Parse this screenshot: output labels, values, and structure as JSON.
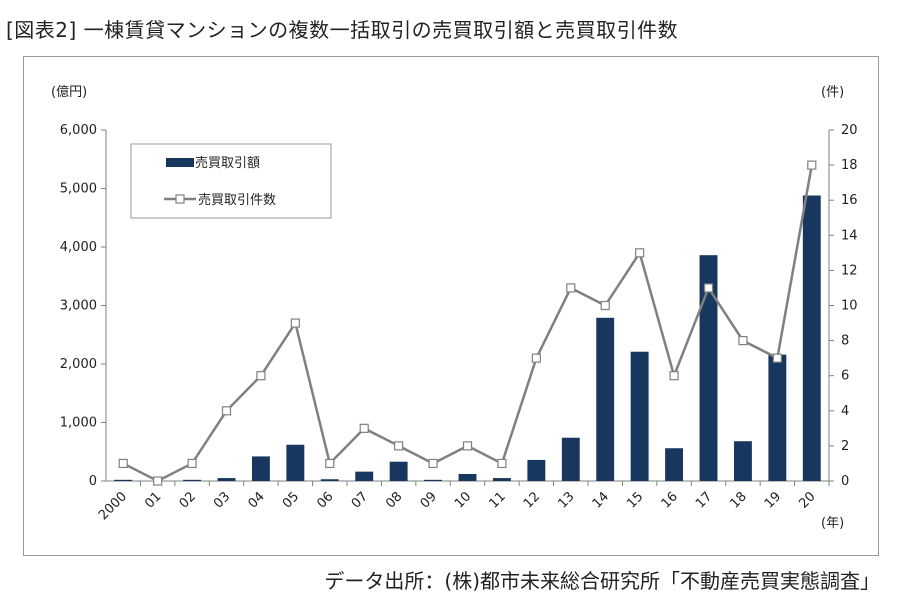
{
  "figure": {
    "title": "[図表2] 一棟賃貸マンションの複数一括取引の売買取引額と売買取引件数",
    "source": "データ出所：(株)都市未来総合研究所「不動産売買実態調査」"
  },
  "colors": {
    "bar": "#17375e",
    "line": "#808080",
    "marker_fill": "#ffffff",
    "axis": "#808080"
  },
  "chart_data": {
    "type": "bar",
    "categories": [
      "2000",
      "01",
      "02",
      "03",
      "04",
      "05",
      "06",
      "07",
      "08",
      "09",
      "10",
      "11",
      "12",
      "13",
      "14",
      "15",
      "16",
      "17",
      "18",
      "19",
      "20"
    ],
    "series": [
      {
        "name": "売買取引額",
        "type": "bar",
        "axis": "left",
        "values": [
          20,
          0,
          20,
          50,
          420,
          620,
          30,
          160,
          330,
          20,
          120,
          50,
          360,
          740,
          2790,
          2210,
          560,
          3860,
          680,
          2160,
          4880
        ]
      },
      {
        "name": "売買取引件数",
        "type": "line",
        "axis": "right",
        "values": [
          1,
          0,
          1,
          4,
          6,
          9,
          1,
          3,
          2,
          1,
          2,
          1,
          7,
          11,
          10,
          13,
          6,
          11,
          8,
          7,
          18
        ]
      }
    ],
    "left_axis": {
      "unit": "(億円)",
      "ylim": [
        0,
        6000
      ],
      "ticks": [
        "0",
        "1,000",
        "2,000",
        "3,000",
        "4,000",
        "5,000",
        "6,000"
      ],
      "tick_values": [
        0,
        1000,
        2000,
        3000,
        4000,
        5000,
        6000
      ]
    },
    "right_axis": {
      "unit": "(件)",
      "ylim": [
        0,
        20
      ],
      "ticks": [
        "0",
        "2",
        "4",
        "6",
        "8",
        "10",
        "12",
        "14",
        "16",
        "18",
        "20"
      ],
      "tick_values": [
        0,
        2,
        4,
        6,
        8,
        10,
        12,
        14,
        16,
        18,
        20
      ]
    },
    "x_unit": "(年)",
    "legend_position": "top-left",
    "grid": false
  }
}
